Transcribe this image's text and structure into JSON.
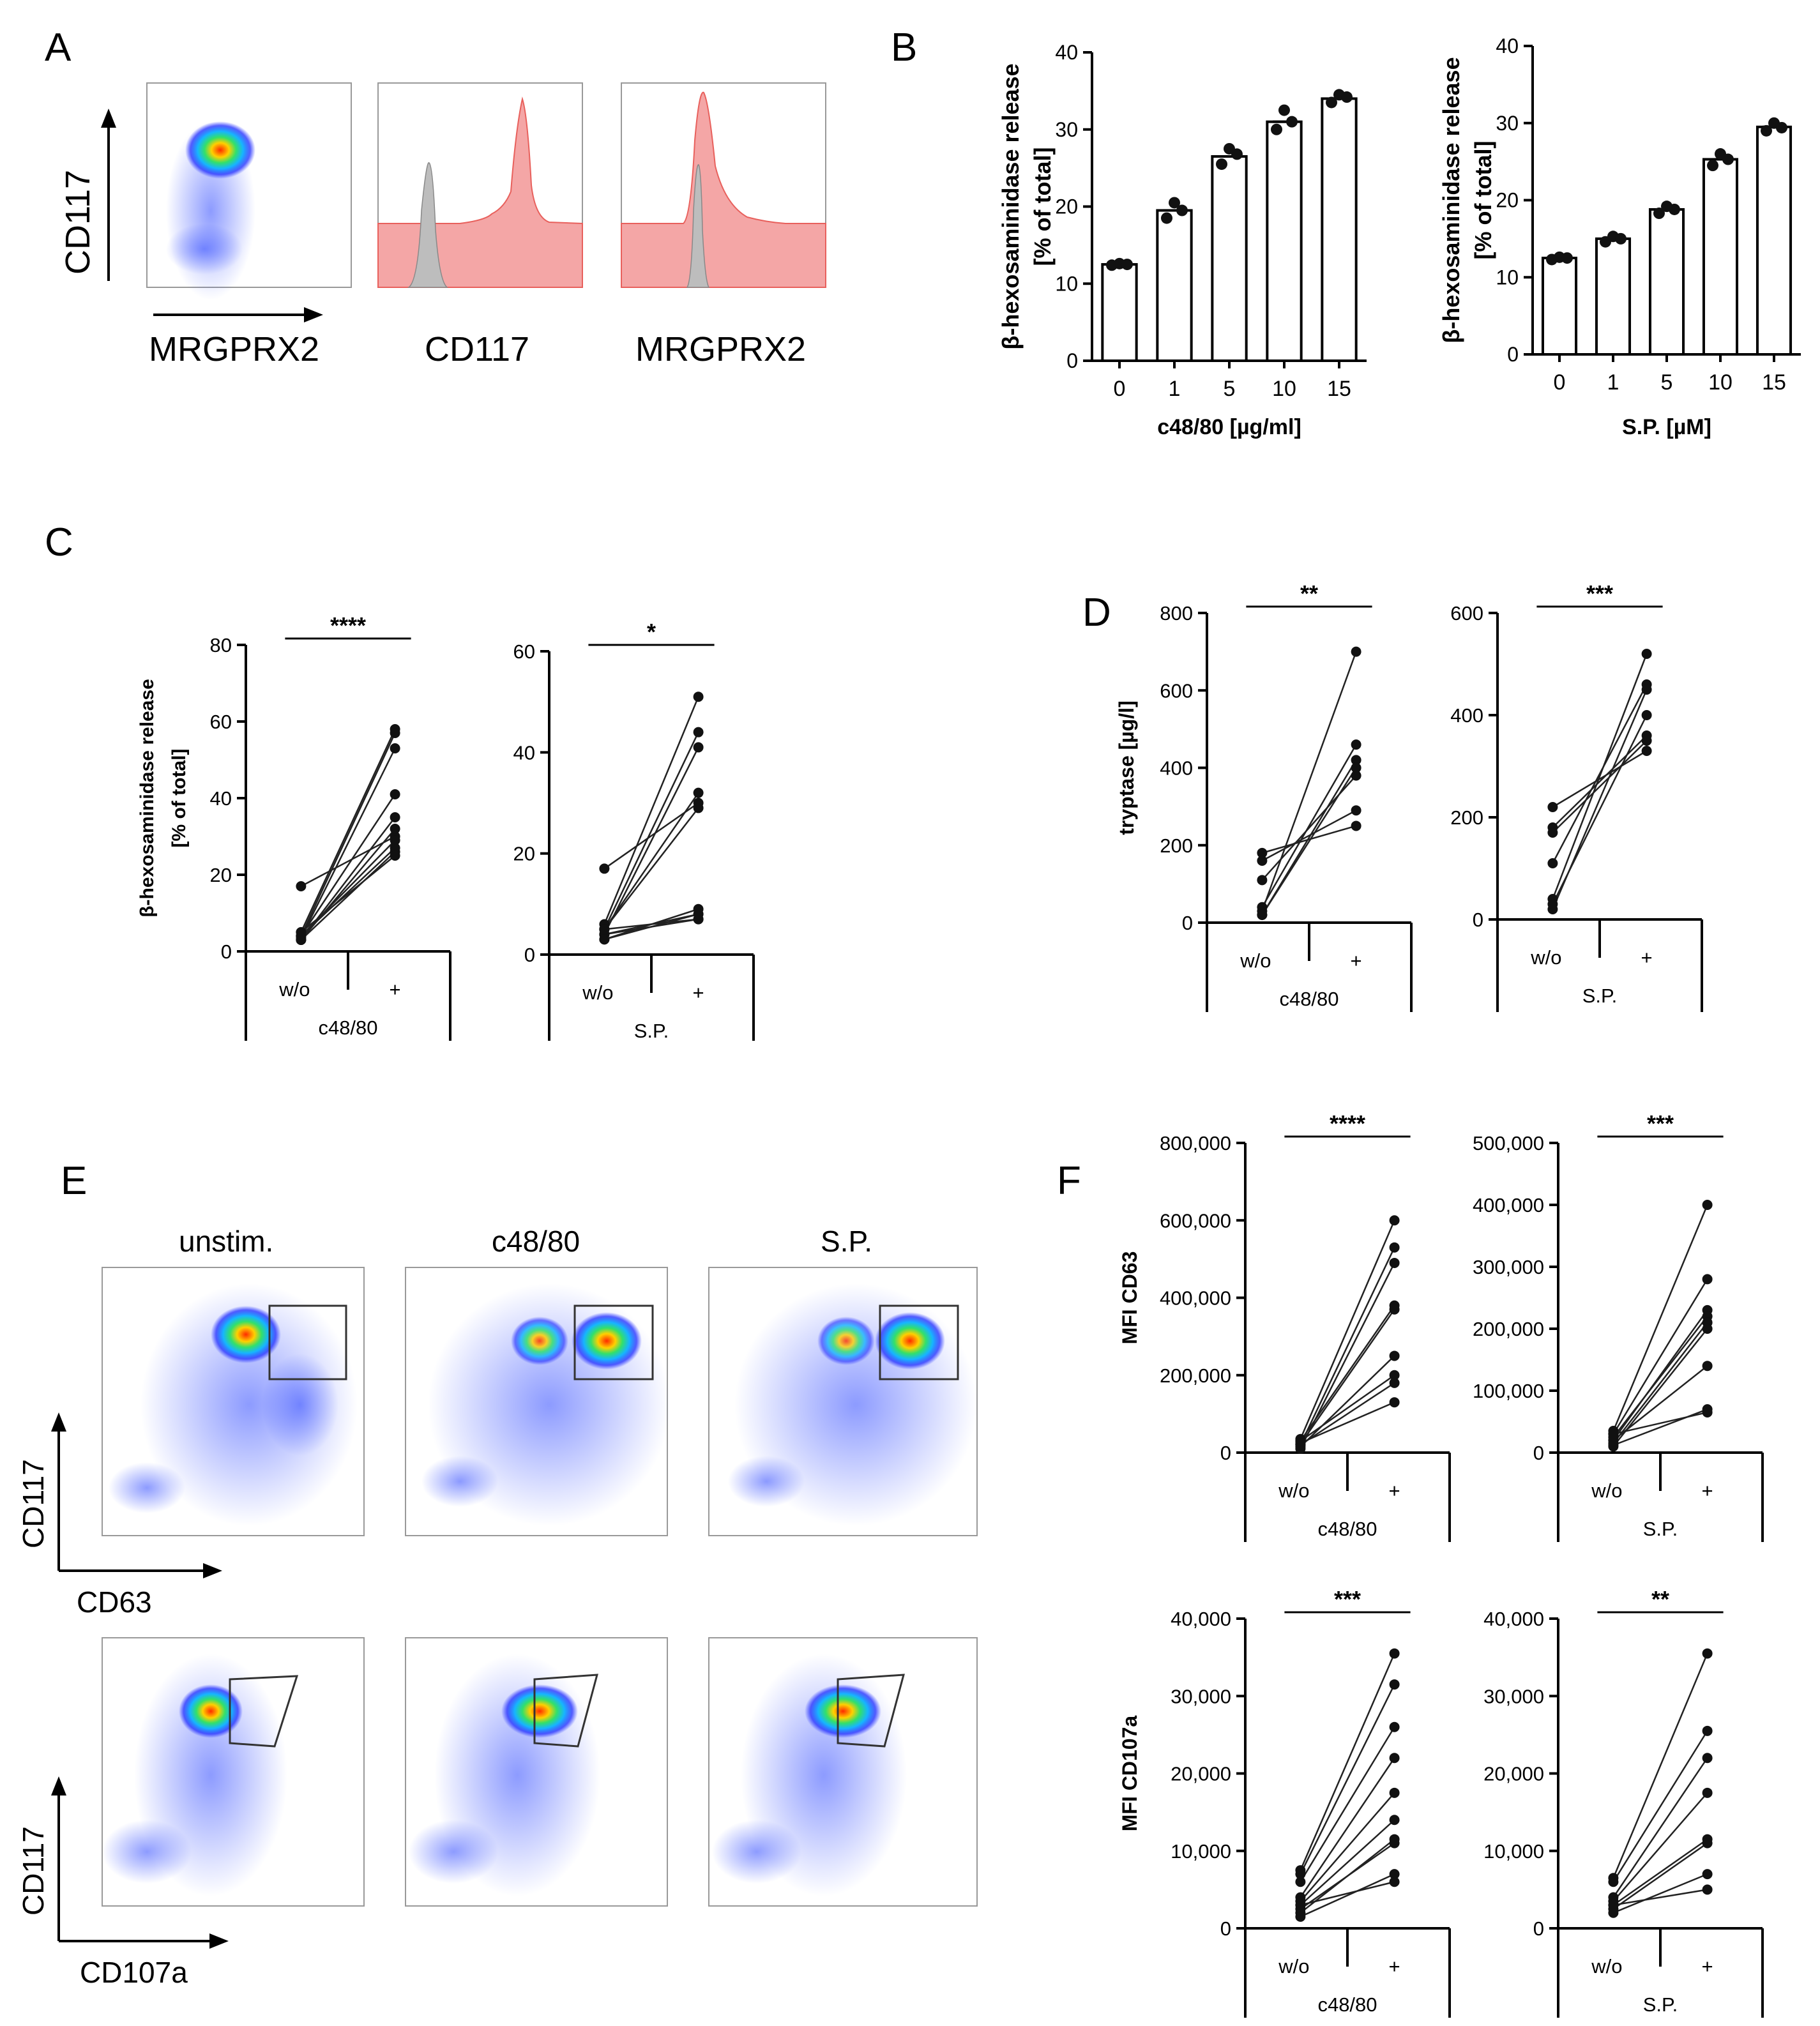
{
  "panel_letters": {
    "A": "A",
    "B": "B",
    "C": "C",
    "D": "D",
    "E": "E",
    "F": "F"
  },
  "colors": {
    "hist_red_fill": "#f4a6a6",
    "hist_red_line": "#e8605c",
    "hist_gray": "#bdbdbd",
    "dot": "#111111",
    "bar": "#ffffff",
    "density_low": "#1f3cff",
    "density_high": "#ff2a00"
  },
  "panel_a": {
    "scatter_ylabel": "CD117",
    "scatter_xlabel": "MRGPRX2",
    "hist1_xlabel": "CD117",
    "hist2_xlabel": "MRGPRX2"
  },
  "panel_e": {
    "col_titles": [
      "unstim.",
      "c48/80",
      "S.P."
    ],
    "row1_ylabel": "CD117",
    "row1_xlabel": "CD63",
    "row2_ylabel": "CD117",
    "row2_xlabel": "CD107a"
  },
  "chart_data": [
    {
      "id": "b1",
      "type": "bar",
      "title": "",
      "ylabel": "β-hexosaminidase release\n[% of total]",
      "xlabel": "c48/80 [µg/ml]",
      "categories": [
        "0",
        "1",
        "5",
        "10",
        "15"
      ],
      "values": [
        12.5,
        19.5,
        26.5,
        31,
        34
      ],
      "points": [
        [
          12.4,
          12.6,
          12.5
        ],
        [
          18.5,
          20.5,
          19.5
        ],
        [
          25.5,
          27.5,
          26.8
        ],
        [
          30,
          32.5,
          31
        ],
        [
          33.5,
          34.5,
          34.2
        ]
      ],
      "ylim": [
        0,
        40
      ],
      "yticks": [
        0,
        10,
        20,
        30,
        40
      ]
    },
    {
      "id": "b2",
      "type": "bar",
      "title": "",
      "ylabel": "β-hexosaminidase release\n[% of total]",
      "xlabel": "S.P. [µM]",
      "categories": [
        "0",
        "1",
        "5",
        "10",
        "15"
      ],
      "values": [
        12.5,
        15,
        18.8,
        25.3,
        29.5
      ],
      "points": [
        [
          12.3,
          12.6,
          12.5
        ],
        [
          14.6,
          15.3,
          15
        ],
        [
          18.3,
          19.2,
          18.8
        ],
        [
          24.5,
          26,
          25.3
        ],
        [
          29,
          30,
          29.4
        ]
      ],
      "ylim": [
        0,
        40
      ],
      "yticks": [
        0,
        10,
        20,
        30,
        40
      ]
    },
    {
      "id": "c1",
      "type": "scatter",
      "ylabel": "β-hexosaminidase release\n[% of total]",
      "group": "c48/80",
      "categories": [
        "w/o",
        "+"
      ],
      "significance": "****",
      "pairs": [
        [
          17,
          30
        ],
        [
          5,
          58
        ],
        [
          4,
          57
        ],
        [
          3.5,
          53
        ],
        [
          4,
          41
        ],
        [
          3,
          35
        ],
        [
          3,
          32
        ],
        [
          4,
          29
        ],
        [
          4,
          27
        ],
        [
          3,
          26
        ],
        [
          5,
          25
        ]
      ],
      "ylim": [
        0,
        80
      ],
      "yticks": [
        0,
        20,
        40,
        60,
        80
      ],
      "ytick_labels": [
        "0",
        "20",
        "40",
        "60",
        "80"
      ]
    },
    {
      "id": "c2",
      "type": "scatter",
      "ylabel": "",
      "group": "S.P.",
      "categories": [
        "w/o",
        "+"
      ],
      "significance": "*",
      "pairs": [
        [
          17,
          30
        ],
        [
          6,
          51
        ],
        [
          5,
          44
        ],
        [
          4,
          41
        ],
        [
          5,
          32
        ],
        [
          5,
          29
        ],
        [
          3,
          9
        ],
        [
          4,
          8
        ],
        [
          4,
          7
        ],
        [
          5,
          7
        ],
        [
          3,
          8
        ]
      ],
      "ylim": [
        0,
        60
      ],
      "yticks": [
        0,
        20,
        40,
        60
      ],
      "ytick_labels": [
        "0",
        "20",
        "40",
        "60"
      ]
    },
    {
      "id": "d1",
      "type": "scatter",
      "ylabel": "tryptase [µg/l]",
      "group": "c48/80",
      "categories": [
        "w/o",
        "+"
      ],
      "significance": "**",
      "pairs": [
        [
          180,
          250
        ],
        [
          160,
          290
        ],
        [
          110,
          380
        ],
        [
          30,
          700
        ],
        [
          20,
          420
        ],
        [
          40,
          460
        ],
        [
          20,
          400
        ]
      ],
      "ylim": [
        0,
        800
      ],
      "yticks": [
        0,
        200,
        400,
        600,
        800
      ],
      "ytick_labels": [
        "0",
        "200",
        "400",
        "600",
        "800"
      ]
    },
    {
      "id": "d2",
      "type": "scatter",
      "ylabel": "",
      "group": "S.P.",
      "categories": [
        "w/o",
        "+"
      ],
      "significance": "***",
      "pairs": [
        [
          220,
          330
        ],
        [
          180,
          360
        ],
        [
          170,
          350
        ],
        [
          110,
          460
        ],
        [
          40,
          520
        ],
        [
          20,
          450
        ],
        [
          30,
          400
        ]
      ],
      "ylim": [
        0,
        600
      ],
      "yticks": [
        0,
        200,
        400,
        600
      ],
      "ytick_labels": [
        "0",
        "200",
        "400",
        "600"
      ]
    },
    {
      "id": "f1",
      "type": "scatter",
      "ylabel": "MFI CD63",
      "group": "c48/80",
      "categories": [
        "w/o",
        "+"
      ],
      "significance": "****",
      "pairs": [
        [
          25000,
          130000
        ],
        [
          20000,
          180000
        ],
        [
          30000,
          200000
        ],
        [
          15000,
          250000
        ],
        [
          22000,
          370000
        ],
        [
          30000,
          380000
        ],
        [
          10000,
          490000
        ],
        [
          20000,
          530000
        ],
        [
          35000,
          600000
        ]
      ],
      "ylim": [
        0,
        800000
      ],
      "yticks": [
        0,
        200000,
        400000,
        600000,
        800000
      ],
      "ytick_labels": [
        "0",
        "200,000",
        "400,000",
        "600,000",
        "800,000"
      ]
    },
    {
      "id": "f2",
      "type": "scatter",
      "ylabel": "",
      "group": "S.P.",
      "categories": [
        "w/o",
        "+"
      ],
      "significance": "***",
      "pairs": [
        [
          35000,
          400000
        ],
        [
          30000,
          280000
        ],
        [
          20000,
          230000
        ],
        [
          25000,
          220000
        ],
        [
          15000,
          210000
        ],
        [
          10000,
          200000
        ],
        [
          20000,
          140000
        ],
        [
          30000,
          65000
        ],
        [
          12000,
          70000
        ]
      ],
      "ylim": [
        0,
        500000
      ],
      "yticks": [
        0,
        100000,
        200000,
        300000,
        400000,
        500000
      ],
      "ytick_labels": [
        "0",
        "100,000",
        "200,000",
        "300,000",
        "400,000",
        "500,000"
      ]
    },
    {
      "id": "f3",
      "type": "scatter",
      "ylabel": "MFI CD107a",
      "group": "c48/80",
      "categories": [
        "w/o",
        "+"
      ],
      "significance": "***",
      "pairs": [
        [
          7500,
          35500
        ],
        [
          7000,
          31500
        ],
        [
          6000,
          26000
        ],
        [
          4000,
          22000
        ],
        [
          3500,
          17500
        ],
        [
          3000,
          14000
        ],
        [
          2500,
          11000
        ],
        [
          2000,
          11500
        ],
        [
          1500,
          7000
        ],
        [
          3000,
          6000
        ]
      ],
      "ylim": [
        0,
        40000
      ],
      "yticks": [
        0,
        10000,
        20000,
        30000,
        40000
      ],
      "ytick_labels": [
        "0",
        "10,000",
        "20,000",
        "30,000",
        "40,000"
      ]
    },
    {
      "id": "f4",
      "type": "scatter",
      "ylabel": "",
      "group": "S.P.",
      "categories": [
        "w/o",
        "+"
      ],
      "significance": "**",
      "pairs": [
        [
          6500,
          35500
        ],
        [
          6000,
          25500
        ],
        [
          4000,
          22000
        ],
        [
          3500,
          17500
        ],
        [
          3000,
          11500
        ],
        [
          2500,
          11000
        ],
        [
          2000,
          7000
        ],
        [
          3000,
          5000
        ]
      ],
      "ylim": [
        0,
        40000
      ],
      "yticks": [
        0,
        10000,
        20000,
        30000,
        40000
      ],
      "ytick_labels": [
        "0",
        "10,000",
        "20,000",
        "30,000",
        "40,000"
      ]
    }
  ]
}
